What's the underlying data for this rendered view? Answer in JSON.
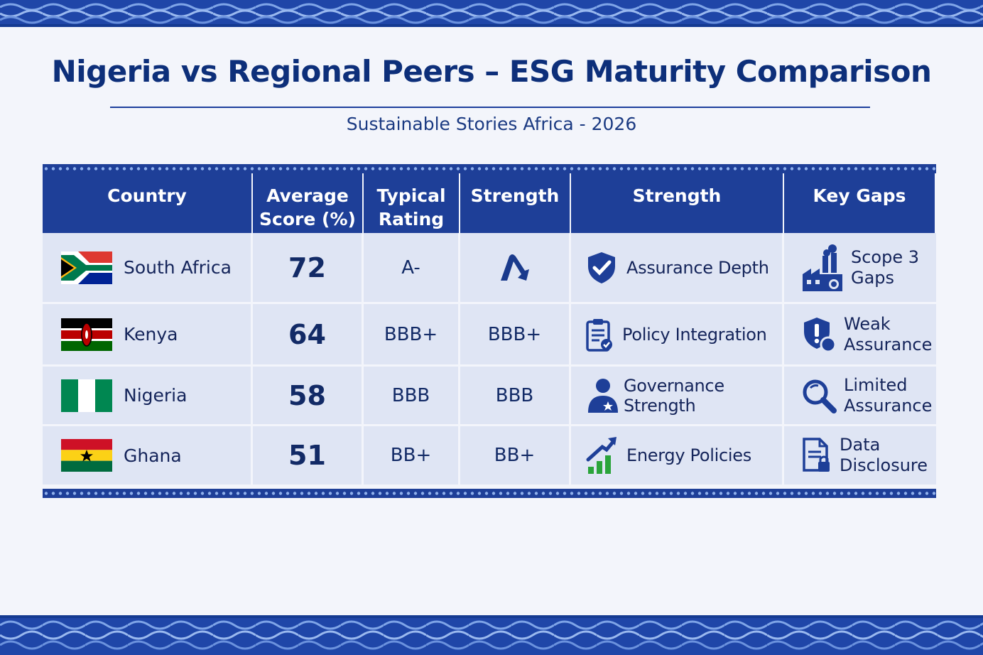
{
  "header": {
    "title": "Nigeria vs Regional Peers – ESG Maturity Comparison",
    "subtitle": "Sustainable Stories Africa - 2026"
  },
  "table": {
    "columns": [
      "Country",
      "Average Score (%)",
      "Typical Rating",
      "Strength",
      "Strength",
      "Key Gaps"
    ],
    "rows": [
      {
        "country": "South Africa",
        "score": "72",
        "rating": "A-",
        "strength_rating": "",
        "strength_icon": "rating-arrow-icon",
        "strength": "Assurance Depth",
        "strength_area_icon": "shield-check-icon",
        "gap": "Scope 3 Gaps",
        "gap_icon": "factory-icon"
      },
      {
        "country": "Kenya",
        "score": "64",
        "rating": "BBB+",
        "strength_rating": "BBB+",
        "strength": "Policy Integration",
        "strength_area_icon": "clipboard-check-icon",
        "gap": "Weak Assurance",
        "gap_icon": "shield-warning-icon"
      },
      {
        "country": "Nigeria",
        "score": "58",
        "rating": "BBB",
        "strength_rating": "BBB",
        "strength": "Governance Strength",
        "strength_area_icon": "person-star-icon",
        "gap": "Limited Assurance",
        "gap_icon": "magnifier-icon"
      },
      {
        "country": "Ghana",
        "score": "51",
        "rating": "BB+",
        "strength_rating": "BB+",
        "strength": "Energy Policies",
        "strength_area_icon": "growth-chart-icon",
        "gap": "Data Disclosure",
        "gap_icon": "document-lock-icon"
      }
    ]
  },
  "colors": {
    "header_bg": "#1e3f98",
    "title": "#0d2f7a",
    "cell_bg": "#dfe5f4",
    "growth_green": "#2aa43a"
  }
}
